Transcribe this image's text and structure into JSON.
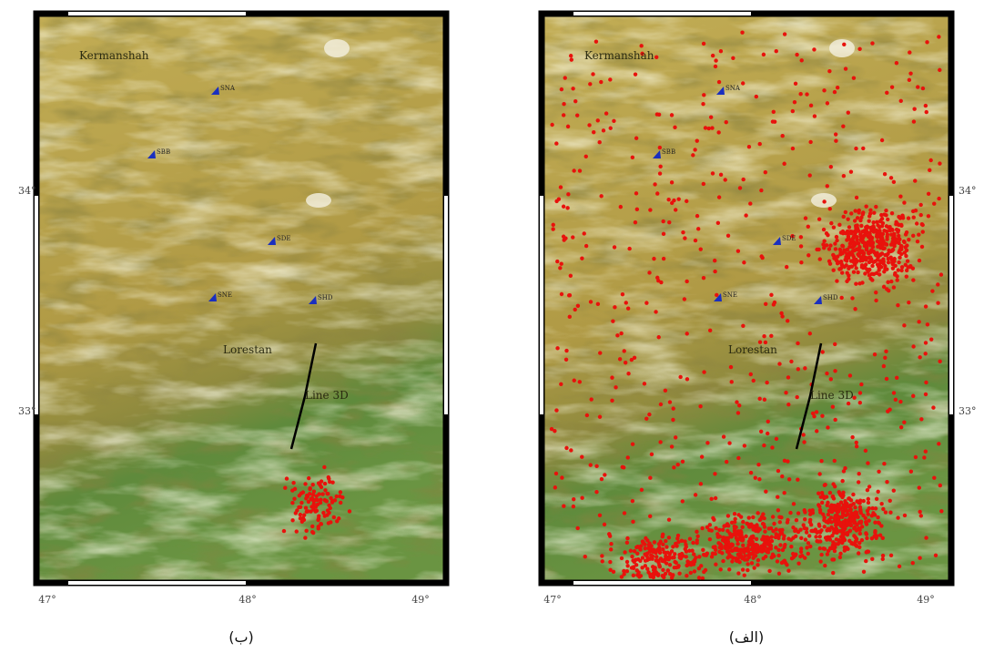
{
  "panels": [
    {
      "caption": "(ب)",
      "places": [
        "Kermanshah",
        "Lorestan"
      ],
      "line_label": "Line 3D",
      "stations": [
        "SNA",
        "SBB",
        "SDE",
        "SNE",
        "SHD"
      ],
      "x_ticks": [
        "47°",
        "48°",
        "49°"
      ],
      "y_ticks": [
        "34°",
        "33°"
      ]
    },
    {
      "caption": "(الف)",
      "places": [
        "Kermanshah",
        "Lorestan"
      ],
      "line_label": "Line 3D",
      "stations": [
        "SNA",
        "SBB",
        "SDE",
        "SNE",
        "SHD"
      ],
      "x_ticks": [
        "47°",
        "48°",
        "49°"
      ],
      "y_ticks": [
        "34°",
        "33°"
      ]
    }
  ]
}
